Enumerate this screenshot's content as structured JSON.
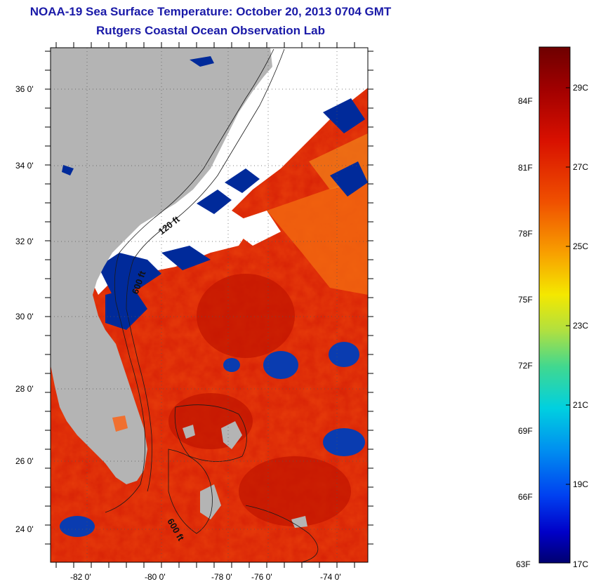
{
  "title": "NOAA-19 Sea Surface Temperature:  October 20, 2013 0704 GMT",
  "subtitle": "Rutgers Coastal Ocean Observation Lab",
  "lat_ticks": [
    "36 0'",
    "34 0'",
    "32 0'",
    "30 0'",
    "28 0'",
    "26 0'",
    "24 0'"
  ],
  "lon_ticks": [
    "-82 0'",
    "-80 0'",
    "-78 0'",
    "-76 0'",
    "-74 0'"
  ],
  "contour_labels": [
    "120 ft",
    "600 ft",
    "600 ft"
  ],
  "colorbar": {
    "fahrenheit": [
      "84F",
      "81F",
      "78F",
      "75F",
      "72F",
      "69F",
      "66F",
      "63F"
    ],
    "celsius": [
      "29C",
      "27C",
      "25C",
      "23C",
      "21C",
      "19C",
      "17C"
    ],
    "colors": [
      "#6e0000",
      "#b50000",
      "#e21a00",
      "#f25a00",
      "#f7a000",
      "#f2e000",
      "#b8e640",
      "#40d890",
      "#00c8e0",
      "#0090f0",
      "#0040f0",
      "#0000c8",
      "#000078"
    ]
  },
  "colors": {
    "title": "#1a1aa8",
    "land": "#b4b4b4",
    "cloud": "#ffffff",
    "warm_sst": "#e63a0a",
    "cold_sst": "#002a9a"
  }
}
